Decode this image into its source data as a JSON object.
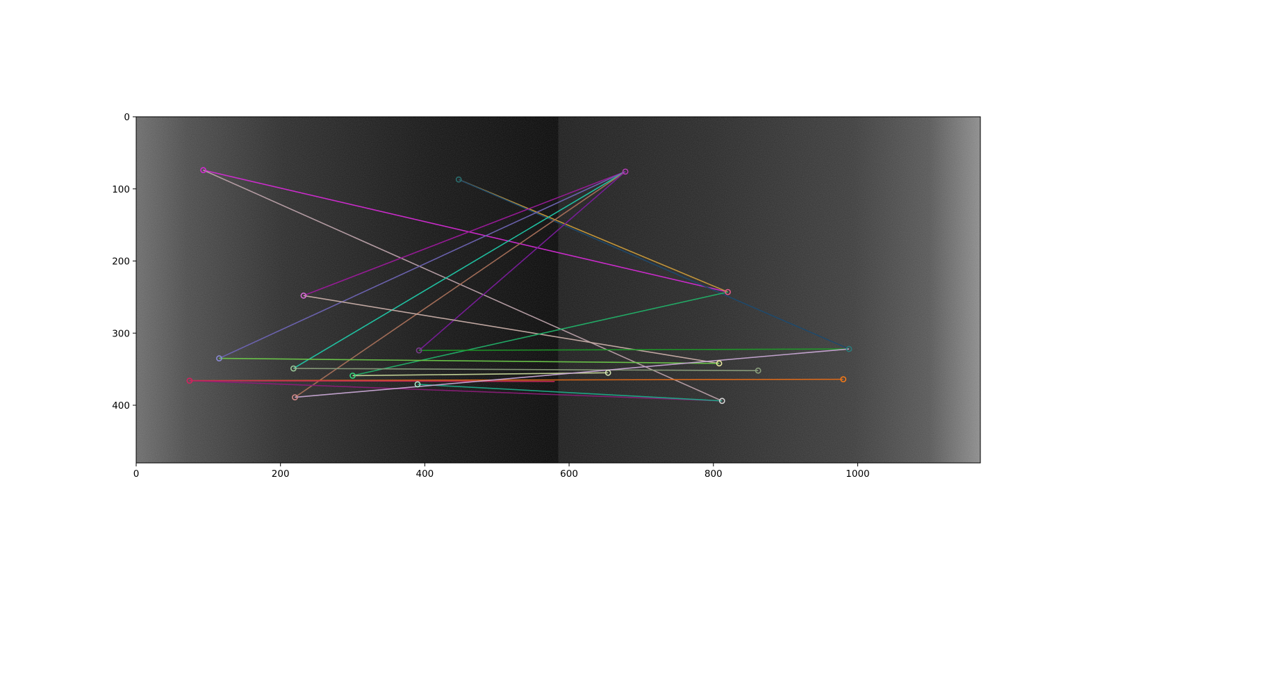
{
  "chart_data": {
    "type": "scatter",
    "description_type": "feature-match image plot",
    "xlim": [
      0,
      1170
    ],
    "ylim": [
      480,
      0
    ],
    "y_inverted": true,
    "grid": false,
    "x_ticks": [
      0,
      200,
      400,
      600,
      800,
      1000
    ],
    "y_ticks": [
      0,
      100,
      200,
      300,
      400
    ],
    "image_split_x": 585,
    "matches": [
      {
        "x1": 93,
        "y1": 74,
        "x2": 820,
        "y2": 243,
        "color": "#d42bd4"
      },
      {
        "x1": 93,
        "y1": 74,
        "x2": 812,
        "y2": 394,
        "color": "#b9a0a8"
      },
      {
        "x1": 447,
        "y1": 87,
        "x2": 820,
        "y2": 243,
        "color": "#c99a3a"
      },
      {
        "x1": 447,
        "y1": 87,
        "x2": 988,
        "y2": 322,
        "color": "#1e4a6e"
      },
      {
        "x1": 678,
        "y1": 76,
        "x2": 232,
        "y2": 248,
        "color": "#9b1a9b"
      },
      {
        "x1": 678,
        "y1": 76,
        "x2": 115,
        "y2": 335,
        "color": "#6e64b4"
      },
      {
        "x1": 678,
        "y1": 76,
        "x2": 218,
        "y2": 349,
        "color": "#20c8a8"
      },
      {
        "x1": 678,
        "y1": 76,
        "x2": 220,
        "y2": 389,
        "color": "#a8705a"
      },
      {
        "x1": 678,
        "y1": 76,
        "x2": 392,
        "y2": 324,
        "color": "#7a1c9c"
      },
      {
        "x1": 232,
        "y1": 248,
        "x2": 808,
        "y2": 342,
        "color": "#c8aea8"
      },
      {
        "x1": 820,
        "y1": 243,
        "x2": 300,
        "y2": 359,
        "color": "#22b068"
      },
      {
        "x1": 392,
        "y1": 324,
        "x2": 988,
        "y2": 322,
        "color": "#1e9a28"
      },
      {
        "x1": 115,
        "y1": 335,
        "x2": 808,
        "y2": 342,
        "color": "#6cc84a"
      },
      {
        "x1": 218,
        "y1": 349,
        "x2": 862,
        "y2": 352,
        "color": "#8a9e7c"
      },
      {
        "x1": 300,
        "y1": 359,
        "x2": 654,
        "y2": 355,
        "color": "#c8d89a"
      },
      {
        "x1": 74,
        "y1": 366,
        "x2": 980,
        "y2": 364,
        "color": "#e06a18"
      },
      {
        "x1": 74,
        "y1": 366,
        "x2": 812,
        "y2": 394,
        "color": "#8a1e78"
      },
      {
        "x1": 74,
        "y1": 366,
        "x2": 580,
        "y2": 367,
        "color": "#c8285a"
      },
      {
        "x1": 390,
        "y1": 371,
        "x2": 812,
        "y2": 394,
        "color": "#1eaa88"
      },
      {
        "x1": 220,
        "y1": 389,
        "x2": 988,
        "y2": 322,
        "color": "#c8a8d4"
      }
    ],
    "keypoints": [
      {
        "x": 93,
        "y": 74,
        "color": "#d42bd4"
      },
      {
        "x": 447,
        "y": 87,
        "color": "#2a6e6e"
      },
      {
        "x": 678,
        "y": 76,
        "color": "#b43cb4"
      },
      {
        "x": 232,
        "y": 248,
        "color": "#d46ad4"
      },
      {
        "x": 820,
        "y": 243,
        "color": "#e05a8a"
      },
      {
        "x": 392,
        "y": 324,
        "color": "#7a3c8c"
      },
      {
        "x": 988,
        "y": 322,
        "color": "#2a7a7a"
      },
      {
        "x": 115,
        "y": 335,
        "color": "#8a8ad4"
      },
      {
        "x": 808,
        "y": 342,
        "color": "#e8e8a0"
      },
      {
        "x": 218,
        "y": 349,
        "color": "#9ac89a"
      },
      {
        "x": 862,
        "y": 352,
        "color": "#8a9e7c"
      },
      {
        "x": 654,
        "y": 355,
        "color": "#d4e4b4"
      },
      {
        "x": 300,
        "y": 359,
        "color": "#34d47a"
      },
      {
        "x": 74,
        "y": 366,
        "color": "#d42060"
      },
      {
        "x": 980,
        "y": 364,
        "color": "#f07818"
      },
      {
        "x": 390,
        "y": 371,
        "color": "#a8e8c8"
      },
      {
        "x": 220,
        "y": 389,
        "color": "#d48a8a"
      },
      {
        "x": 812,
        "y": 394,
        "color": "#d4d4d4"
      }
    ]
  }
}
